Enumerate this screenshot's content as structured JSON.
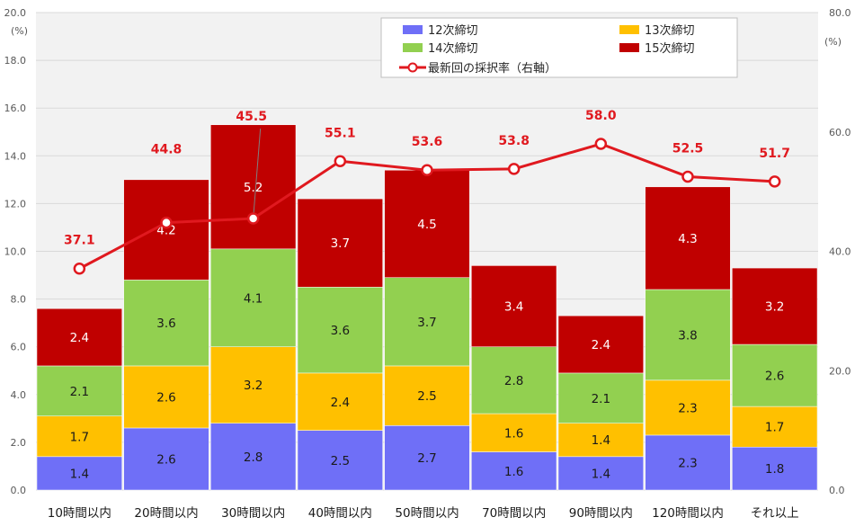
{
  "chart_data": {
    "type": "bar",
    "stacked": true,
    "categories": [
      "10時間以内",
      "20時間以内",
      "30時間以内",
      "40時間以内",
      "50時間以内",
      "70時間以内",
      "90時間以内",
      "120時間以内",
      "それ以上"
    ],
    "series": [
      {
        "name": "12次締切",
        "color": "#6f6ff7",
        "values": [
          1.4,
          2.6,
          2.8,
          2.5,
          2.7,
          1.6,
          1.4,
          2.3,
          1.8
        ]
      },
      {
        "name": "13次締切",
        "color": "#ffc000",
        "values": [
          1.7,
          2.6,
          3.2,
          2.4,
          2.5,
          1.6,
          1.4,
          2.3,
          1.7
        ]
      },
      {
        "name": "14次締切",
        "color": "#92d050",
        "values": [
          2.1,
          3.6,
          4.1,
          3.6,
          3.7,
          2.8,
          2.1,
          3.8,
          2.6
        ]
      },
      {
        "name": "15次締切",
        "color": "#c00000",
        "values": [
          2.4,
          4.2,
          5.2,
          3.7,
          4.5,
          3.4,
          2.4,
          4.3,
          3.2
        ]
      }
    ],
    "line_series": {
      "name": "最新回の採択率（右軸）",
      "color": "#e0191f",
      "axis": "right",
      "values": [
        37.1,
        44.8,
        45.5,
        55.1,
        53.6,
        53.8,
        58.0,
        52.5,
        51.7
      ]
    },
    "y_left": {
      "unit": "(%)",
      "range": [
        0,
        20
      ],
      "ticks": [
        "0.0",
        "2.0",
        "4.0",
        "6.0",
        "8.0",
        "10.0",
        "12.0",
        "14.0",
        "16.0",
        "18.0",
        "20.0"
      ]
    },
    "y_right": {
      "unit": "(%)",
      "range": [
        0,
        80
      ],
      "ticks": [
        "0.0",
        "20.0",
        "40.0",
        "60.0",
        "80.0"
      ]
    },
    "grid": true,
    "legend": {
      "position": "top-right"
    }
  }
}
